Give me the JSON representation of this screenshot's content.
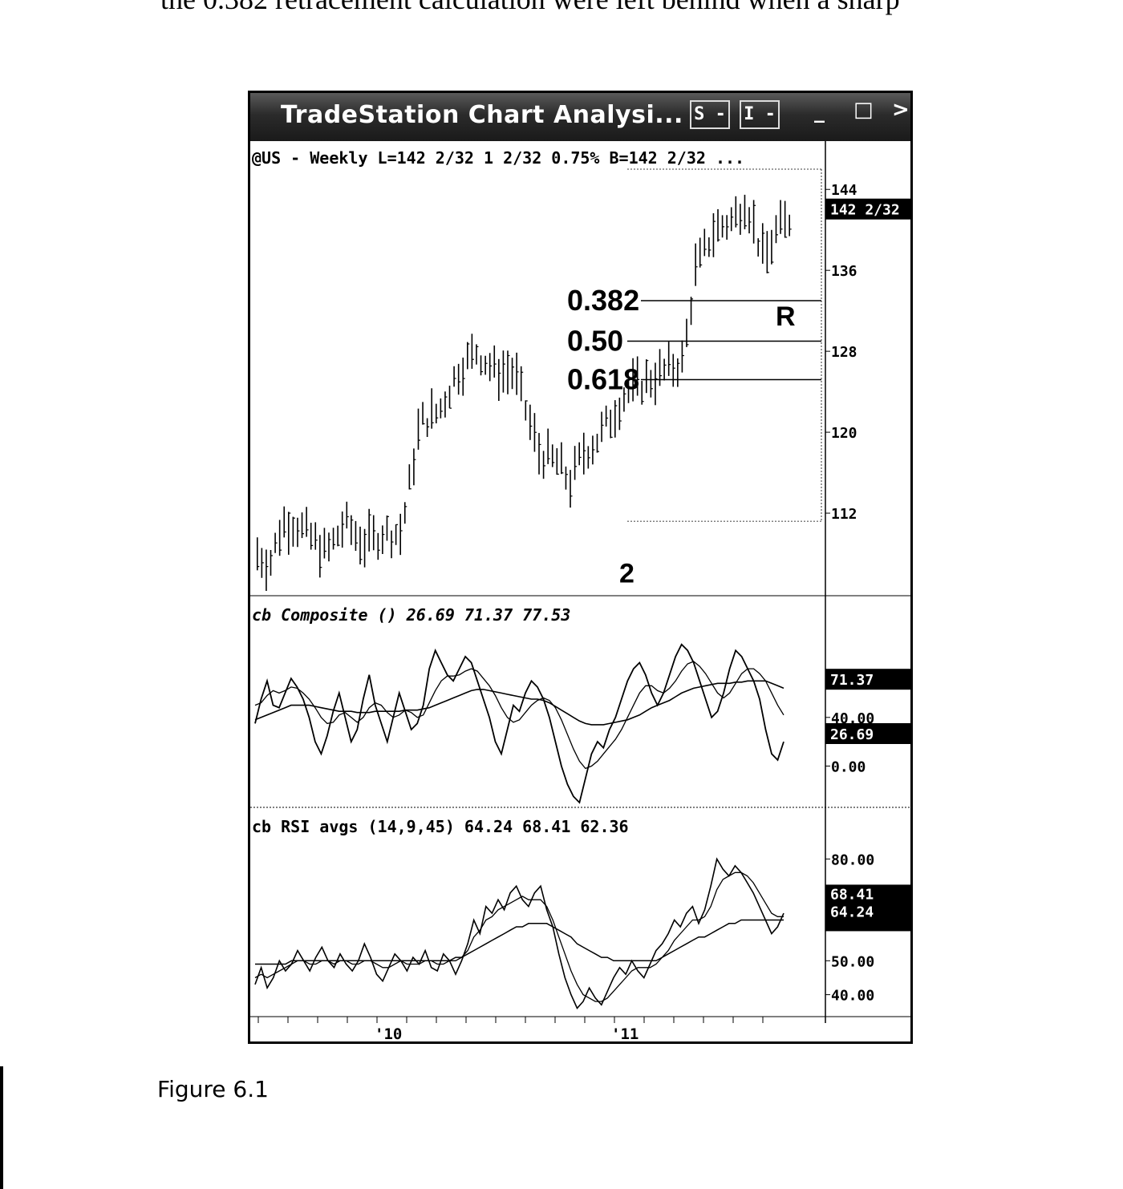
{
  "page": {
    "top_text": "the 0.382 retracement calculation were left behind when a sharp",
    "caption": "Figure 6.1"
  },
  "window": {
    "title": "TradeStation Chart Analysi...",
    "buttons": [
      "S -",
      "I -"
    ],
    "controls": [
      "_",
      "□",
      ">"
    ]
  },
  "chart_data": [
    {
      "type": "bar",
      "title": "@US - Weekly  L=142 2/32  1 2/32  0.75%  B=142 2/32 ...",
      "y_ticks": [
        "144",
        "136",
        "128",
        "120",
        "112"
      ],
      "y_tick_values": [
        144,
        136,
        128,
        120,
        112
      ],
      "ylim": [
        104,
        146
      ],
      "last_price_label": "142 2/32",
      "last_price": 142.06,
      "x_labels": [
        "'10",
        "'11"
      ],
      "ohlc_series": {
        "name": "@US",
        "bars": 120,
        "start_year": "2009",
        "low": 105.5,
        "high": 145.5
      },
      "fib_levels": [
        {
          "label": "0.382",
          "value": 133.0
        },
        {
          "label": "0.50",
          "value": 129.0
        },
        {
          "label": "0.618",
          "value": 125.2
        }
      ],
      "annotations": [
        "2",
        "R"
      ],
      "annotation_values": [
        111.5,
        131.5
      ]
    },
    {
      "type": "line",
      "title": "cb Composite ()  26.69  71.37  77.53",
      "y_ticks": [
        "40.00",
        "0.00"
      ],
      "y_tick_values": [
        40,
        0
      ],
      "ylim": [
        -30,
        115
      ],
      "value_labels": [
        "71.37",
        "26.69"
      ],
      "series": [
        {
          "values": [
            35,
            55,
            70,
            50,
            48,
            60,
            72,
            65,
            55,
            40,
            20,
            10,
            25,
            45,
            60,
            40,
            20,
            30,
            55,
            75,
            50,
            35,
            20,
            40,
            60,
            45,
            30,
            35,
            50,
            80,
            95,
            85,
            75,
            70,
            80,
            90,
            85,
            70,
            55,
            40,
            20,
            10,
            30,
            50,
            45,
            60,
            70,
            65,
            55,
            40,
            20,
            0,
            -15,
            -25,
            -30,
            -10,
            10,
            20,
            15,
            30,
            40,
            55,
            70,
            80,
            85,
            75,
            60,
            50,
            60,
            75,
            90,
            100,
            95,
            85,
            70,
            55,
            40,
            45,
            60,
            80,
            95,
            90,
            80,
            70,
            55,
            30,
            10,
            5,
            20
          ]
        },
        {
          "values": [
            50,
            52,
            58,
            62,
            60,
            62,
            65,
            64,
            60,
            55,
            48,
            40,
            35,
            36,
            42,
            44,
            40,
            36,
            40,
            48,
            52,
            50,
            44,
            40,
            42,
            46,
            44,
            40,
            42,
            52,
            62,
            70,
            74,
            74,
            75,
            78,
            80,
            78,
            72,
            66,
            58,
            48,
            40,
            36,
            38,
            44,
            50,
            54,
            56,
            54,
            48,
            38,
            26,
            14,
            4,
            -2,
            0,
            4,
            10,
            16,
            22,
            30,
            40,
            50,
            60,
            66,
            66,
            62,
            60,
            64,
            70,
            78,
            84,
            86,
            82,
            76,
            68,
            60,
            56,
            60,
            68,
            76,
            80,
            80,
            76,
            70,
            60,
            50,
            42
          ]
        },
        {
          "values": [
            38,
            40,
            42,
            44,
            46,
            48,
            50,
            50,
            50,
            50,
            49,
            48,
            47,
            46,
            45,
            45,
            45,
            44,
            44,
            44,
            45,
            45,
            45,
            45,
            45,
            46,
            46,
            46,
            47,
            48,
            50,
            52,
            54,
            56,
            58,
            60,
            62,
            63,
            63,
            62,
            61,
            60,
            59,
            58,
            57,
            56,
            55,
            55,
            54,
            52,
            49,
            46,
            43,
            40,
            37,
            35,
            34,
            34,
            34,
            35,
            36,
            37,
            38,
            40,
            42,
            45,
            48,
            50,
            52,
            54,
            57,
            60,
            62,
            64,
            65,
            66,
            67,
            68,
            68,
            68,
            69,
            69,
            70,
            70,
            70,
            70,
            68,
            66,
            64
          ]
        }
      ]
    },
    {
      "type": "line",
      "title": "cb RSI avgs (14,9,45)  64.24  68.41  62.36",
      "y_ticks": [
        "80.00",
        "50.00",
        "40.00"
      ],
      "y_tick_values": [
        80,
        50,
        40
      ],
      "ylim": [
        34,
        86
      ],
      "value_labels": [
        "68.41",
        "64.24"
      ],
      "series": [
        {
          "values": [
            43,
            48,
            42,
            45,
            50,
            47,
            49,
            53,
            50,
            47,
            51,
            54,
            50,
            48,
            52,
            49,
            47,
            50,
            55,
            51,
            46,
            44,
            48,
            52,
            50,
            47,
            51,
            49,
            53,
            48,
            47,
            52,
            50,
            46,
            50,
            55,
            62,
            58,
            66,
            64,
            68,
            65,
            70,
            72,
            68,
            66,
            70,
            72,
            65,
            60,
            52,
            45,
            40,
            36,
            38,
            42,
            39,
            37,
            41,
            45,
            48,
            46,
            50,
            47,
            45,
            49,
            53,
            55,
            58,
            62,
            60,
            64,
            66,
            61,
            65,
            72,
            80,
            77,
            75,
            78,
            76,
            73,
            70,
            66,
            62,
            58,
            60,
            64
          ]
        },
        {
          "values": [
            45,
            46,
            45,
            46,
            47,
            48,
            49,
            50,
            50,
            49,
            49,
            50,
            50,
            49,
            50,
            50,
            49,
            49,
            50,
            50,
            49,
            48,
            48,
            49,
            50,
            49,
            49,
            49,
            50,
            50,
            49,
            49,
            50,
            50,
            51,
            53,
            57,
            59,
            62,
            63,
            65,
            66,
            67,
            68,
            69,
            68,
            68,
            68,
            66,
            62,
            57,
            52,
            47,
            43,
            40,
            39,
            38,
            38,
            39,
            41,
            43,
            45,
            47,
            48,
            48,
            48,
            49,
            51,
            53,
            56,
            58,
            60,
            62,
            62,
            63,
            66,
            71,
            74,
            75,
            76,
            76,
            75,
            73,
            70,
            67,
            64,
            63,
            63
          ]
        },
        {
          "values": [
            49,
            49,
            49,
            49,
            49,
            49,
            50,
            50,
            50,
            50,
            50,
            50,
            50,
            50,
            50,
            50,
            50,
            50,
            50,
            50,
            50,
            50,
            50,
            50,
            50,
            50,
            50,
            50,
            50,
            50,
            50,
            50,
            50,
            51,
            51,
            52,
            53,
            54,
            55,
            56,
            57,
            58,
            59,
            60,
            60,
            61,
            61,
            61,
            61,
            60,
            59,
            58,
            57,
            55,
            54,
            53,
            52,
            51,
            51,
            50,
            50,
            50,
            50,
            50,
            50,
            50,
            50,
            51,
            52,
            53,
            54,
            55,
            56,
            57,
            57,
            58,
            59,
            60,
            61,
            61,
            62,
            62,
            62,
            62,
            62,
            62,
            62,
            62
          ]
        }
      ]
    }
  ]
}
